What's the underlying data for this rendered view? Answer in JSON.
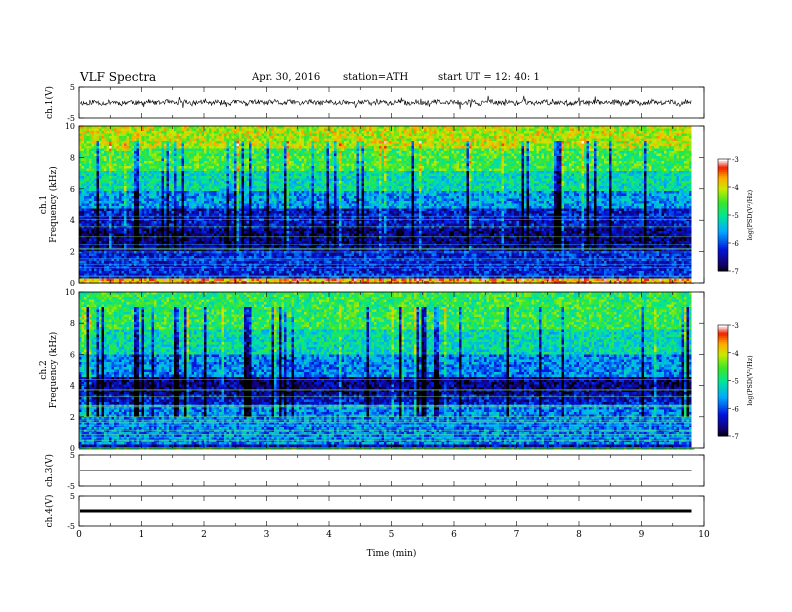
{
  "header": {
    "title": "VLF  Spectra",
    "date": "Apr. 30, 2016",
    "station": "station=ATH",
    "start": "start  UT  =   12: 40: 1"
  },
  "chart_data": [
    {
      "type": "line",
      "panel": "ch1-waveform",
      "ylabel": "ch.1(V)",
      "ylim": [
        -5,
        5
      ],
      "yticks": [
        "5",
        "-5"
      ],
      "description_values": {
        "baseline": 0,
        "typical_range": [
          -1,
          1
        ],
        "spike_range": [
          -2,
          2
        ]
      }
    },
    {
      "type": "heatmap",
      "panel": "ch1-spectrogram",
      "ylabel": "ch.1 Frequency  (kHz)",
      "ylim": [
        0,
        10
      ],
      "yticks": [
        "0",
        "2",
        "4",
        "6",
        "8",
        "10"
      ],
      "colorbar": {
        "label": "log(PSD(V²/Hz)",
        "range": [
          -7,
          -3
        ],
        "ticks": [
          "-3",
          "-4",
          "-5",
          "-6",
          "-7"
        ]
      },
      "bands": [
        {
          "f": [
            0,
            0.3
          ],
          "v": -3.6
        },
        {
          "f": [
            0.3,
            2.0
          ],
          "v": -6.2
        },
        {
          "f": [
            2.0,
            3.4
          ],
          "v": -6.6
        },
        {
          "f": [
            3.4,
            4.8
          ],
          "v": -6.3
        },
        {
          "f": [
            4.8,
            5.8
          ],
          "v": -5.6
        },
        {
          "f": [
            5.8,
            7.2
          ],
          "v": -5.1
        },
        {
          "f": [
            7.2,
            8.6
          ],
          "v": -4.6
        },
        {
          "f": [
            8.6,
            10.0
          ],
          "v": -4.1
        }
      ]
    },
    {
      "type": "heatmap",
      "panel": "ch2-spectrogram",
      "ylabel": "ch.2 Frequency  (kHz)",
      "ylim": [
        0,
        10
      ],
      "yticks": [
        "0",
        "2",
        "4",
        "6",
        "8",
        "10"
      ],
      "colorbar": {
        "label": "log(PSD(V²/Hz)",
        "range": [
          -7,
          -3
        ],
        "ticks": [
          "-3",
          "-4",
          "-5",
          "-6",
          "-7"
        ]
      },
      "bands": [
        {
          "f": [
            0,
            0.3
          ],
          "v": -6.4
        },
        {
          "f": [
            0.3,
            2.8
          ],
          "v": -5.7
        },
        {
          "f": [
            2.8,
            3.4
          ],
          "v": -6.3
        },
        {
          "f": [
            3.4,
            4.6
          ],
          "v": -6.6
        },
        {
          "f": [
            4.6,
            6.0
          ],
          "v": -5.7
        },
        {
          "f": [
            6.0,
            7.6
          ],
          "v": -5.1
        },
        {
          "f": [
            7.6,
            10.0
          ],
          "v": -4.7
        }
      ]
    },
    {
      "type": "line",
      "panel": "ch3-waveform",
      "ylabel": "ch.3(V)",
      "ylim": [
        -5,
        5
      ],
      "yticks": [
        "5",
        "-5"
      ],
      "values": {
        "constant": 0
      }
    },
    {
      "type": "line",
      "panel": "ch4-waveform",
      "ylabel": "ch.4(V)",
      "ylim": [
        -5,
        5
      ],
      "yticks": [
        "5",
        "-5"
      ],
      "values": {
        "constant": 0
      }
    }
  ],
  "xaxis": {
    "label": "Time  (min)",
    "range": [
      0,
      10
    ],
    "ticks": [
      "0",
      "1",
      "2",
      "3",
      "4",
      "5",
      "6",
      "7",
      "8",
      "9",
      "10"
    ],
    "data_end": 9.8
  },
  "colors": {
    "line": "#000000",
    "ch3_line": "#888888"
  }
}
